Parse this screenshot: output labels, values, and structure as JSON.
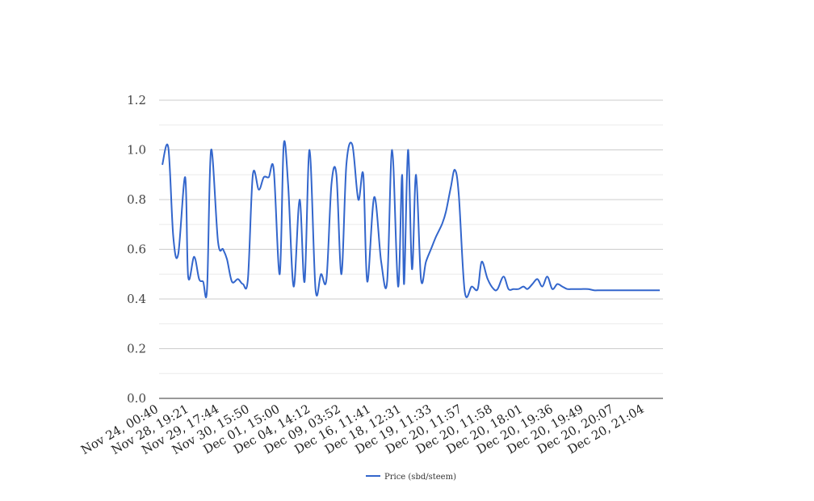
{
  "chart_data": {
    "type": "line",
    "title": "",
    "xlabel": "",
    "ylabel": "",
    "ylim": [
      0,
      1.2
    ],
    "y_ticks": [
      "0.0",
      "0.2",
      "0.4",
      "0.6",
      "0.8",
      "1.0",
      "1.2"
    ],
    "y_tick_values": [
      0,
      0.2,
      0.4,
      0.6,
      0.8,
      1.0,
      1.2
    ],
    "grid": true,
    "legend_position": "bottom-center",
    "x_tick_labels": [
      "Nov 24, 00:40",
      "Nov 28, 19:21",
      "Nov 29, 17:44",
      "Nov 30, 15:50",
      "Dec 01, 15:00",
      "Dec 04, 14:12",
      "Dec 09, 03:52",
      "Dec 16, 11:41",
      "Dec 18, 12:31",
      "Dec 19, 11:33",
      "Dec 20, 11:57",
      "Dec 20, 11:58",
      "Dec 20, 18:01",
      "Dec 20, 19:36",
      "Dec 20, 19:49",
      "Dec 20, 20:07",
      "Dec 20, 21:04"
    ],
    "series": [
      {
        "name": "Price (sbd/steem)",
        "color": "#3366cc",
        "x": [
          0,
          1.2,
          2.2,
          3.2,
          4.6,
          5.2,
          6.4,
          7.4,
          8.2,
          9.0,
          9.8,
          11.2,
          12.2,
          13.0,
          14.0,
          15.2,
          16.2,
          17.2,
          18.2,
          19.4,
          20.4,
          21.4,
          22.4,
          23.6,
          24.4,
          25.3,
          26.4,
          27.6,
          28.6,
          29.6,
          30.8,
          31.9,
          33.0,
          34.0,
          35.0,
          36.0,
          37.0,
          38.2,
          39.4,
          40.4,
          41.2,
          42.6,
          44.0,
          45.2,
          46.2,
          47.4,
          48.2,
          48.6,
          49.4,
          50.2,
          51.0,
          52.0,
          53.0,
          54.0,
          55.0,
          56.2,
          57.0,
          58.0,
          58.8,
          59.6,
          60.8,
          62.2,
          63.4,
          64.2,
          65.4,
          66.6,
          67.4,
          68.6,
          69.6,
          70.6,
          71.6,
          72.6,
          73.4,
          74.4,
          75.4,
          76.4,
          77.4,
          78.4,
          79.4,
          80.4,
          81.4,
          82.4,
          83.2,
          84.2,
          85.6,
          86.8,
          87.8,
          88.8,
          89.8,
          90.8,
          91.8,
          92.8,
          93.8,
          94.8,
          96.0,
          97.0,
          98.0,
          99.0,
          100.0
        ],
        "values": [
          0.94,
          1.01,
          0.65,
          0.58,
          0.89,
          0.49,
          0.57,
          0.48,
          0.47,
          0.44,
          1.0,
          0.63,
          0.6,
          0.56,
          0.47,
          0.48,
          0.46,
          0.48,
          0.9,
          0.84,
          0.89,
          0.89,
          0.92,
          0.5,
          1.02,
          0.86,
          0.45,
          0.8,
          0.47,
          1.0,
          0.44,
          0.5,
          0.48,
          0.86,
          0.9,
          0.5,
          0.94,
          1.02,
          0.8,
          0.9,
          0.47,
          0.81,
          0.55,
          0.47,
          1.0,
          0.45,
          0.9,
          0.46,
          1.0,
          0.52,
          0.9,
          0.48,
          0.55,
          0.6,
          0.65,
          0.7,
          0.75,
          0.85,
          0.92,
          0.82,
          0.43,
          0.45,
          0.44,
          0.55,
          0.48,
          0.44,
          0.44,
          0.49,
          0.44,
          0.44,
          0.44,
          0.45,
          0.44,
          0.46,
          0.48,
          0.45,
          0.49,
          0.44,
          0.46,
          0.45,
          0.44,
          0.44,
          0.44,
          0.44,
          0.44,
          0.435,
          0.435,
          0.435,
          0.435,
          0.435,
          0.435,
          0.435,
          0.435,
          0.435,
          0.435,
          0.435,
          0.435,
          0.435,
          0.435
        ]
      }
    ]
  }
}
